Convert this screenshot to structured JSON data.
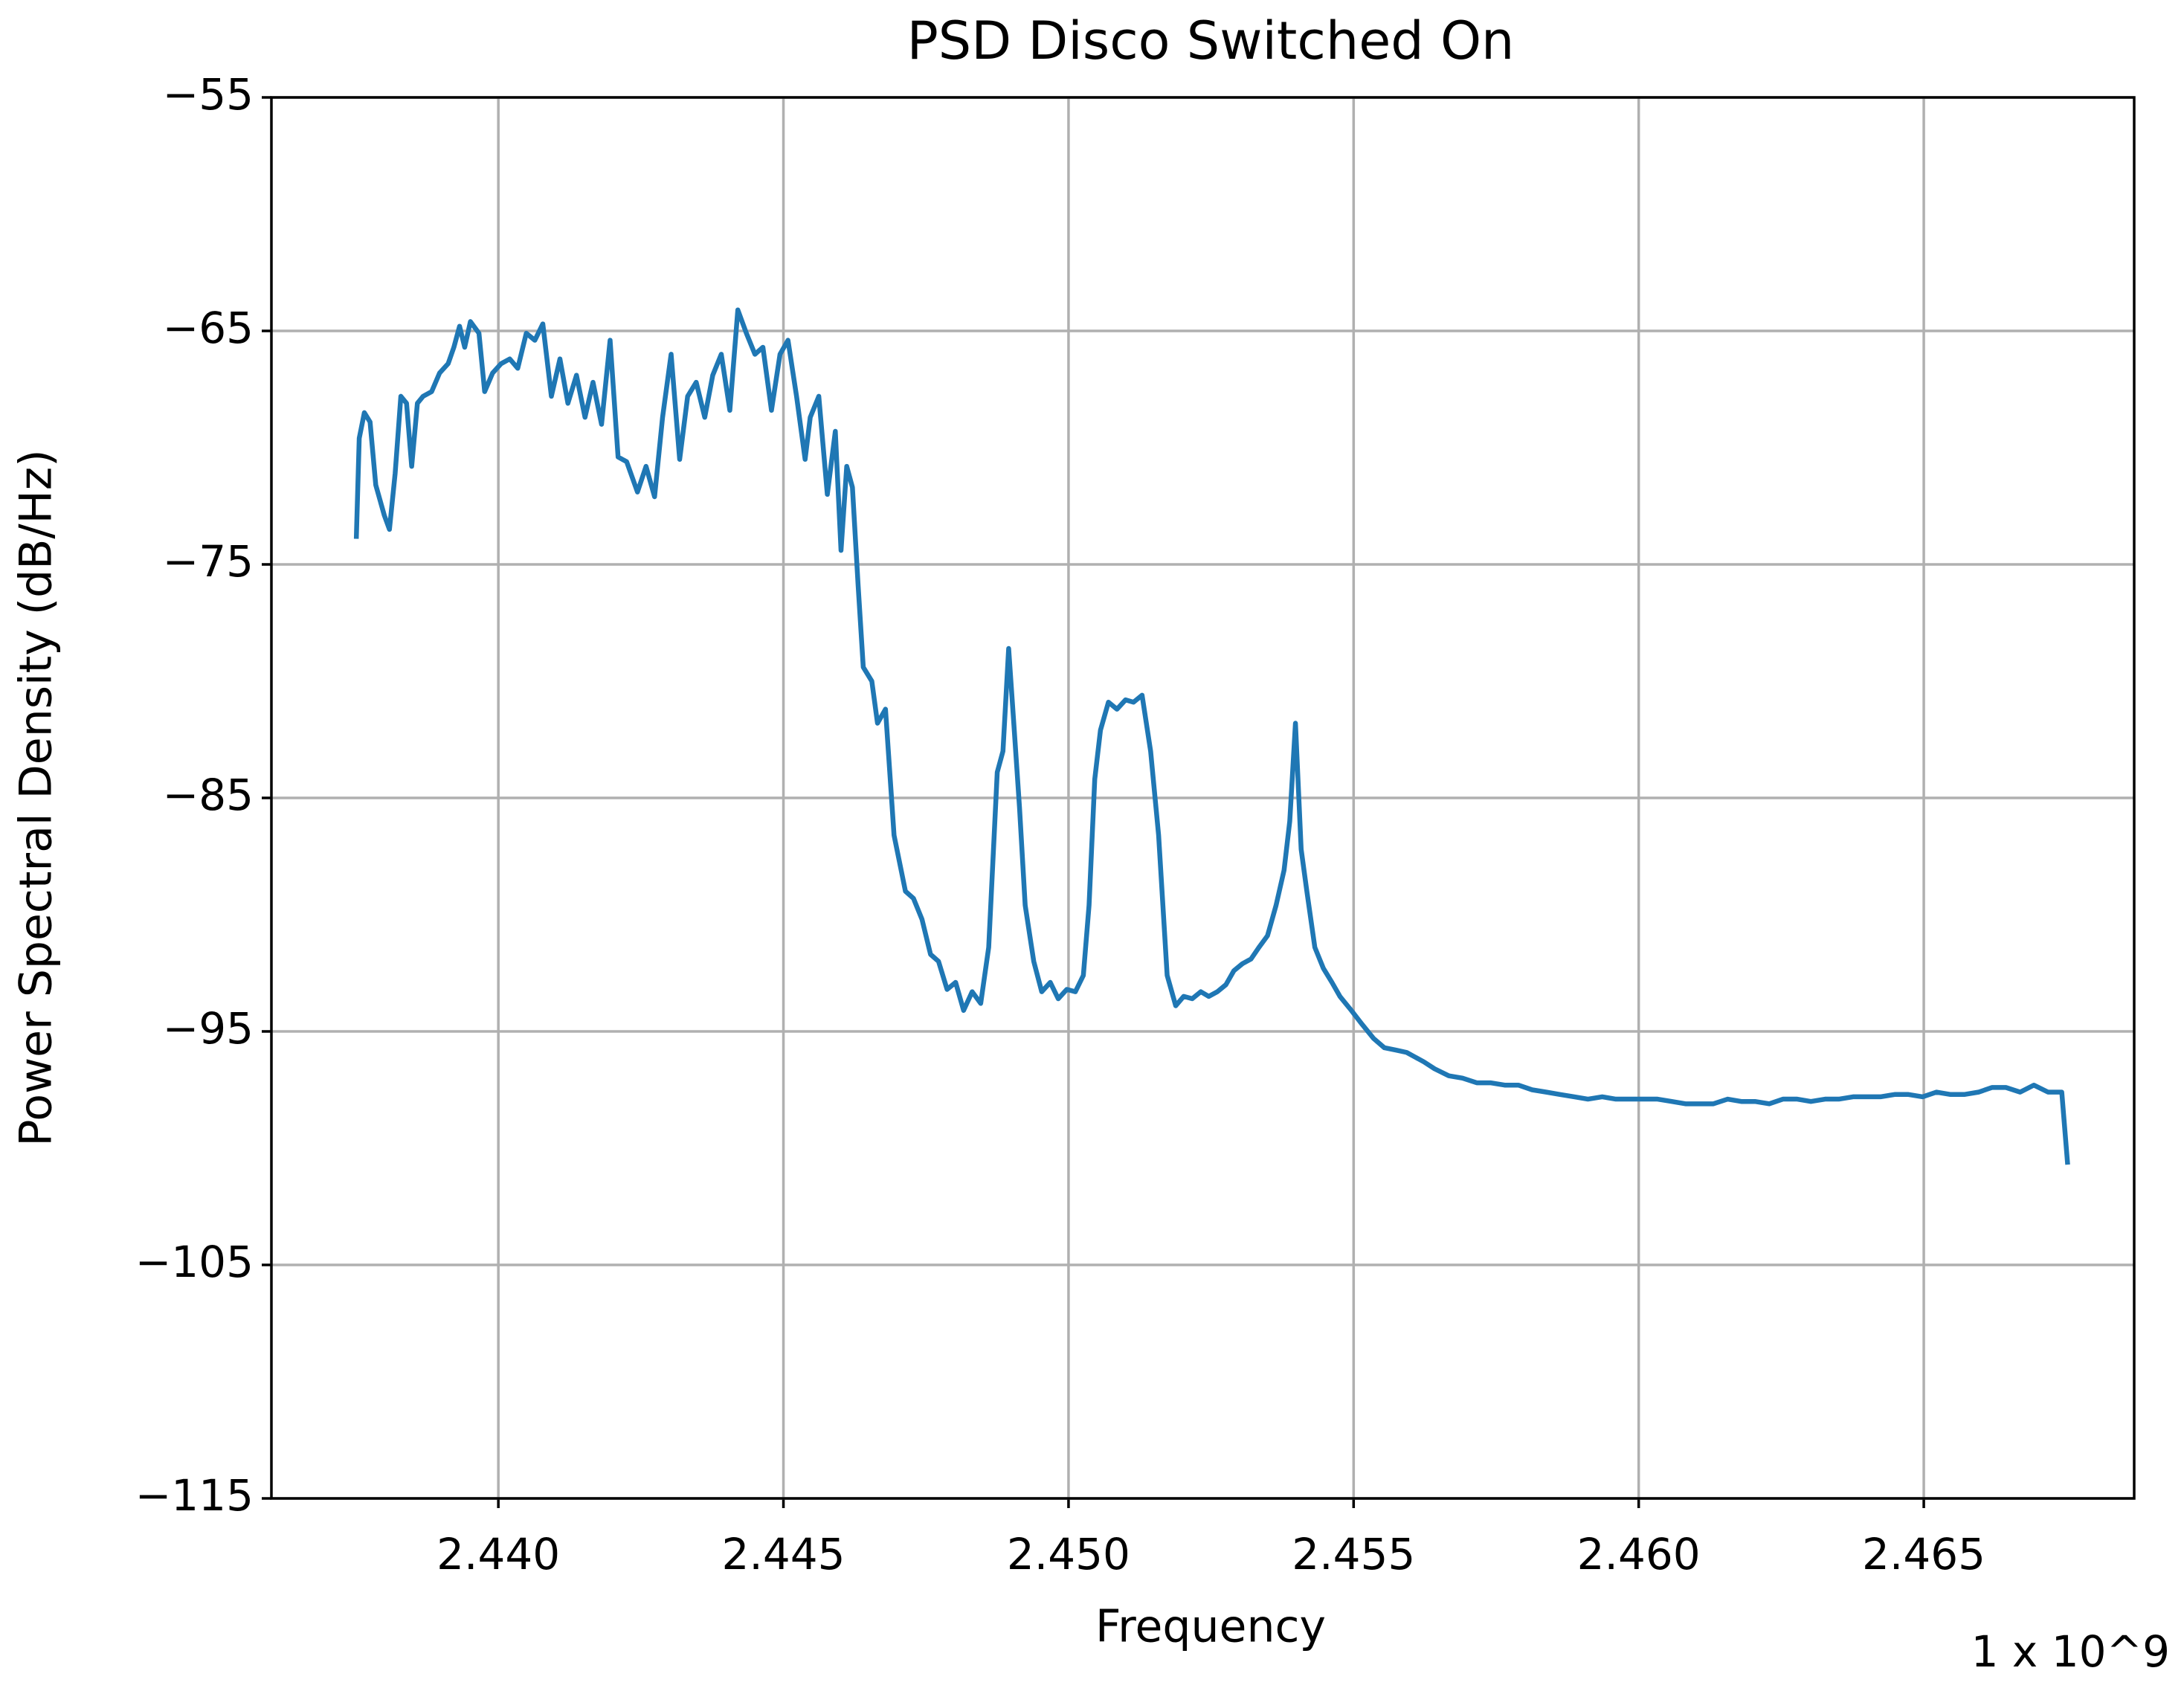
{
  "chart_data": {
    "type": "line",
    "title": "PSD Disco Switched On",
    "xlabel": "Frequency",
    "ylabel": "Power Spectral Density (dB/Hz)",
    "x_offset_label": "1 x 10^9",
    "color": "#1f77b4",
    "grid": true,
    "xlim": [
      2.43602,
      2.46869
    ],
    "ylim": [
      -115,
      -55
    ],
    "xticks": [
      {
        "value": 2.44,
        "label": "2.440"
      },
      {
        "value": 2.445,
        "label": "2.445"
      },
      {
        "value": 2.45,
        "label": "2.450"
      },
      {
        "value": 2.455,
        "label": "2.455"
      },
      {
        "value": 2.46,
        "label": "2.460"
      },
      {
        "value": 2.465,
        "label": "2.465"
      }
    ],
    "yticks": [
      {
        "value": -115,
        "label": "−115"
      },
      {
        "value": -105,
        "label": "−105"
      },
      {
        "value": -95,
        "label": "−95"
      },
      {
        "value": -85,
        "label": "−85"
      },
      {
        "value": -75,
        "label": "−75"
      },
      {
        "value": -65,
        "label": "−65"
      },
      {
        "value": -55,
        "label": "−55"
      }
    ],
    "x": [
      2.43751,
      2.43756,
      2.43765,
      2.43775,
      2.43785,
      2.438,
      2.43809,
      2.43819,
      2.43829,
      2.43839,
      2.43848,
      2.43858,
      2.43868,
      2.43883,
      2.43897,
      2.43912,
      2.43922,
      2.43932,
      2.43941,
      2.43951,
      2.43966,
      2.43976,
      2.4399,
      2.44005,
      2.4402,
      2.44034,
      2.44049,
      2.44064,
      2.44078,
      2.44093,
      2.44108,
      2.44122,
      2.44137,
      2.44152,
      2.44166,
      2.44181,
      2.44196,
      2.4421,
      2.44225,
      2.44244,
      2.44259,
      2.44274,
      2.44288,
      2.44303,
      2.44318,
      2.44332,
      2.44347,
      2.44362,
      2.44376,
      2.44391,
      2.44406,
      2.4442,
      2.44435,
      2.4445,
      2.44464,
      2.44479,
      2.44494,
      2.44508,
      2.44523,
      2.44538,
      2.44547,
      2.44562,
      2.44577,
      2.44591,
      2.44601,
      2.44611,
      2.44621,
      2.44631,
      2.4464,
      2.44655,
      2.44665,
      2.44679,
      2.44694,
      2.44714,
      2.44728,
      2.44743,
      2.44758,
      2.44772,
      2.44787,
      2.44802,
      2.44816,
      2.44831,
      2.44846,
      2.4486,
      2.44875,
      2.44885,
      2.44895,
      2.44904,
      2.44914,
      2.44924,
      2.44939,
      2.44953,
      2.44968,
      2.44982,
      2.44997,
      2.45012,
      2.45026,
      2.45036,
      2.45046,
      2.45056,
      2.4507,
      2.45085,
      2.451,
      2.45114,
      2.45129,
      2.45144,
      2.45158,
      2.45173,
      2.45188,
      2.45202,
      2.45217,
      2.45232,
      2.45246,
      2.45261,
      2.45276,
      2.4529,
      2.45305,
      2.4532,
      2.45334,
      2.45349,
      2.45364,
      2.45378,
      2.45388,
      2.45398,
      2.45408,
      2.45418,
      2.45432,
      2.45447,
      2.45462,
      2.45476,
      2.45496,
      2.45515,
      2.45535,
      2.45554,
      2.45574,
      2.45593,
      2.45608,
      2.45623,
      2.45642,
      2.45667,
      2.45691,
      2.45716,
      2.4574,
      2.45765,
      2.45789,
      2.45813,
      2.45838,
      2.45862,
      2.45887,
      2.45911,
      2.45936,
      2.4596,
      2.45985,
      2.46009,
      2.46033,
      2.46058,
      2.46082,
      2.46107,
      2.46131,
      2.46156,
      2.4618,
      2.46204,
      2.46229,
      2.46253,
      2.46278,
      2.46302,
      2.46327,
      2.46351,
      2.46376,
      2.464,
      2.46424,
      2.46449,
      2.46473,
      2.46498,
      2.46522,
      2.46547,
      2.46571,
      2.46596,
      2.4662,
      2.46644,
      2.46669,
      2.46693,
      2.46718,
      2.46742,
      2.46752
    ],
    "values": [
      -73.8,
      -69.6,
      -68.5,
      -68.9,
      -71.6,
      -72.9,
      -73.5,
      -71.1,
      -67.8,
      -68.1,
      -70.8,
      -68.1,
      -67.8,
      -67.6,
      -66.8,
      -66.4,
      -65.7,
      -64.8,
      -65.7,
      -64.6,
      -65.1,
      -67.6,
      -66.8,
      -66.4,
      -66.2,
      -66.6,
      -65.1,
      -65.4,
      -64.7,
      -67.8,
      -66.2,
      -68.1,
      -66.9,
      -68.7,
      -67.2,
      -69.0,
      -65.4,
      -70.4,
      -70.6,
      -71.9,
      -70.8,
      -72.1,
      -68.7,
      -66.0,
      -70.5,
      -67.8,
      -67.2,
      -68.7,
      -66.9,
      -66.0,
      -68.4,
      -64.1,
      -65.1,
      -66.0,
      -65.7,
      -68.4,
      -66.0,
      -65.4,
      -67.8,
      -70.5,
      -68.7,
      -67.8,
      -72.0,
      -69.3,
      -74.4,
      -70.8,
      -71.7,
      -75.9,
      -79.4,
      -80.0,
      -81.8,
      -81.2,
      -86.6,
      -89.0,
      -89.3,
      -90.2,
      -91.7,
      -92.0,
      -93.2,
      -92.9,
      -94.1,
      -93.3,
      -93.8,
      -91.4,
      -83.9,
      -83.0,
      -78.6,
      -81.8,
      -85.4,
      -89.6,
      -92.0,
      -93.3,
      -92.9,
      -93.6,
      -93.2,
      -93.3,
      -92.6,
      -89.6,
      -84.2,
      -82.1,
      -80.9,
      -81.2,
      -80.8,
      -80.9,
      -80.6,
      -83.0,
      -86.6,
      -92.6,
      -93.9,
      -93.5,
      -93.6,
      -93.3,
      -93.5,
      -93.3,
      -93.0,
      -92.4,
      -92.1,
      -91.9,
      -91.4,
      -90.9,
      -89.6,
      -88.1,
      -86.0,
      -81.8,
      -87.2,
      -89.0,
      -91.4,
      -92.3,
      -92.9,
      -93.5,
      -94.1,
      -94.7,
      -95.3,
      -95.7,
      -95.8,
      -95.9,
      -96.1,
      -96.3,
      -96.6,
      -96.9,
      -97.0,
      -97.2,
      -97.2,
      -97.3,
      -97.3,
      -97.5,
      -97.6,
      -97.7,
      -97.8,
      -97.9,
      -97.8,
      -97.9,
      -97.9,
      -97.9,
      -97.9,
      -98.0,
      -98.1,
      -98.1,
      -98.1,
      -97.9,
      -98.0,
      -98.0,
      -98.1,
      -97.9,
      -97.9,
      -98.0,
      -97.9,
      -97.9,
      -97.8,
      -97.8,
      -97.8,
      -97.7,
      -97.7,
      -97.8,
      -97.6,
      -97.7,
      -97.7,
      -97.6,
      -97.4,
      -97.4,
      -97.6,
      -97.3,
      -97.6,
      -97.6,
      -100.6
    ]
  }
}
